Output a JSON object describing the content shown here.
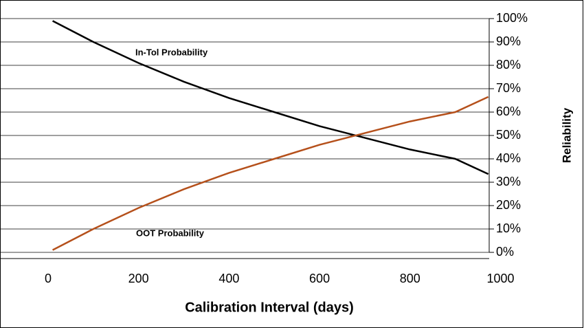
{
  "chart_data": {
    "type": "line",
    "x_label": "Calibration Interval (days)",
    "y_label": "Reliability",
    "annotations": [
      "In-Tol Probability",
      "OOT Probability"
    ],
    "series": [
      {
        "name": "In-Tol Probability",
        "color": "#000000",
        "x": [
          10,
          100,
          200,
          300,
          400,
          500,
          600,
          700,
          800,
          900,
          973
        ],
        "values": [
          99,
          90,
          81,
          73,
          66,
          60,
          54,
          49,
          44,
          40,
          33.5
        ]
      },
      {
        "name": "OOT Probability",
        "color": "#b5501b",
        "x": [
          10,
          100,
          200,
          300,
          400,
          500,
          600,
          700,
          800,
          900,
          973
        ],
        "values": [
          1,
          10,
          19,
          27,
          34,
          40,
          46,
          51,
          56,
          60,
          66.5
        ]
      }
    ],
    "xlim": [
      0,
      975
    ],
    "xticks": [
      0,
      200,
      400,
      600,
      800,
      1000
    ],
    "ylim": [
      0,
      100
    ],
    "yticks": [
      {
        "value": 0,
        "label": "0%"
      },
      {
        "value": 10,
        "label": "10%"
      },
      {
        "value": 20,
        "label": "20%"
      },
      {
        "value": 30,
        "label": "30%"
      },
      {
        "value": 40,
        "label": "40%"
      },
      {
        "value": 50,
        "label": "50%"
      },
      {
        "value": 60,
        "label": "60%"
      },
      {
        "value": 70,
        "label": "70%"
      },
      {
        "value": 80,
        "label": "80%"
      },
      {
        "value": 90,
        "label": "90%"
      },
      {
        "value": 100,
        "label": "100%"
      }
    ],
    "grid": true
  }
}
